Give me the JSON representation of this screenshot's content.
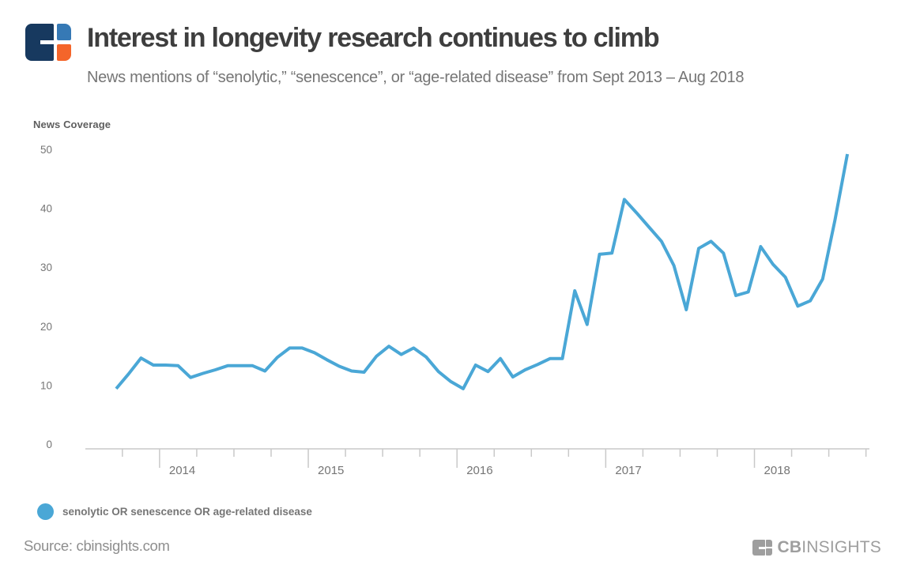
{
  "header": {
    "title": "Interest in longevity research continues to climb",
    "subtitle": "News mentions of “senolytic,” “senescence”, or “age-related disease” from Sept 2013 – Aug 2018"
  },
  "legend": {
    "label": "senolytic OR senescence OR age-related disease"
  },
  "footer": {
    "source": "Source: cbinsights.com",
    "brand_cb": "CB",
    "brand_insights": "INSIGHTS"
  },
  "colors": {
    "line": "#4aa7d6",
    "logo_navy": "#17395f",
    "logo_blue": "#3679b5",
    "logo_orange": "#f4652a",
    "axis": "#c9c9c9",
    "tick_label": "#757575",
    "gray_logo": "#9e9e9e"
  },
  "chart_data": {
    "type": "line",
    "ylabel": "News Coverage",
    "ylim": [
      0,
      50
    ],
    "y_ticks": [
      0,
      10,
      20,
      30,
      40,
      50
    ],
    "x_tick_years": [
      "2014",
      "2015",
      "2016",
      "2017",
      "2018"
    ],
    "grid": false,
    "legend_position": "bottom-left",
    "x": [
      "Sep 2013",
      "Oct 2013",
      "Nov 2013",
      "Dec 2013",
      "Jan 2014",
      "Feb 2014",
      "Mar 2014",
      "Apr 2014",
      "May 2014",
      "Jun 2014",
      "Jul 2014",
      "Aug 2014",
      "Sep 2014",
      "Oct 2014",
      "Nov 2014",
      "Dec 2014",
      "Jan 2015",
      "Feb 2015",
      "Mar 2015",
      "Apr 2015",
      "May 2015",
      "Jun 2015",
      "Jul 2015",
      "Aug 2015",
      "Sep 2015",
      "Oct 2015",
      "Nov 2015",
      "Dec 2015",
      "Jan 2016",
      "Feb 2016",
      "Mar 2016",
      "Apr 2016",
      "May 2016",
      "Jun 2016",
      "Jul 2016",
      "Aug 2016",
      "Sep 2016",
      "Oct 2016",
      "Nov 2016",
      "Dec 2016",
      "Jan 2017",
      "Feb 2017",
      "Mar 2017",
      "Apr 2017",
      "May 2017",
      "Jun 2017",
      "Jul 2017",
      "Aug 2017",
      "Sep 2017",
      "Oct 2017",
      "Nov 2017",
      "Dec 2017",
      "Jan 2018",
      "Feb 2018",
      "Mar 2018",
      "Apr 2018",
      "May 2018",
      "Jun 2018",
      "Jul 2018",
      "Aug 2018"
    ],
    "series": [
      {
        "name": "senolytic OR senescence OR age-related disease",
        "values": [
          9.4,
          11.9,
          14.6,
          13.4,
          13.4,
          13.3,
          11.3,
          12.0,
          12.6,
          13.3,
          13.3,
          13.3,
          12.4,
          14.7,
          16.3,
          16.3,
          15.5,
          14.3,
          13.2,
          12.4,
          12.2,
          14.9,
          16.6,
          15.2,
          16.3,
          14.8,
          12.3,
          10.6,
          9.4,
          13.4,
          12.3,
          14.5,
          11.4,
          12.6,
          13.5,
          14.5,
          14.5,
          26.0,
          20.3,
          32.2,
          32.4,
          41.5,
          39.2,
          36.8,
          34.4,
          30.3,
          22.8,
          33.2,
          34.4,
          32.4,
          25.2,
          25.8,
          33.5,
          30.5,
          28.3,
          23.4,
          24.3,
          28.0,
          38.0,
          49.2
        ]
      }
    ]
  }
}
